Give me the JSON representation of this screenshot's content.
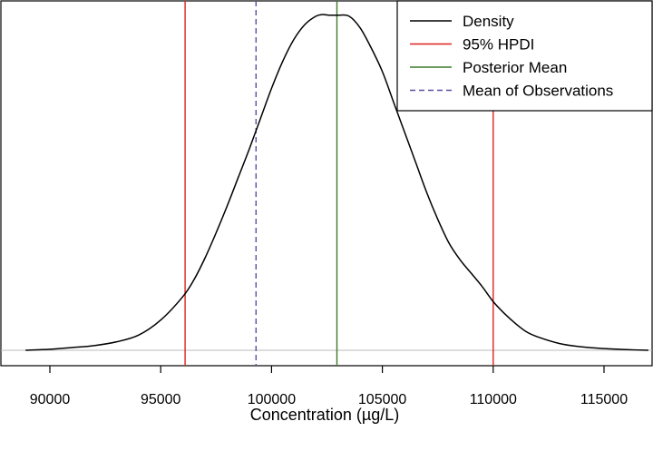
{
  "chart_data": {
    "type": "line",
    "title": "",
    "xlabel": "Concentration (µg/L)",
    "ylabel": "",
    "xlim": [
      88000,
      117500
    ],
    "ylim": [
      0,
      1
    ],
    "x_ticks": [
      90000,
      95000,
      100000,
      105000,
      110000,
      115000
    ],
    "x_tick_labels": [
      "90000",
      "95000",
      "100000",
      "105000",
      "110000",
      "115000"
    ],
    "y_axis_visible": false,
    "grid": false,
    "legend_position": "top-right",
    "legend": [
      {
        "label": "Density",
        "color": "#000000",
        "dash": "solid"
      },
      {
        "label": "95% HPDI",
        "color": "#df2020",
        "dash": "solid"
      },
      {
        "label": "Posterior Mean",
        "color": "#3c7a28",
        "dash": "solid"
      },
      {
        "label": "Mean of Observations",
        "color": "#5a4fa0",
        "dash": "dashed"
      }
    ],
    "density_curve": {
      "name": "Density",
      "color": "#000000",
      "x": [
        88900,
        90000,
        91000,
        92000,
        93000,
        94000,
        95000,
        96000,
        96500,
        97000,
        97500,
        98000,
        98500,
        99000,
        99500,
        100000,
        100500,
        101000,
        101500,
        102000,
        102300,
        102600,
        103000,
        103500,
        104000,
        104500,
        105000,
        105500,
        106000,
        106500,
        107000,
        107500,
        108000,
        108500,
        109000,
        109500,
        110000,
        110500,
        111000,
        111500,
        112000,
        113000,
        114000,
        115000,
        116000,
        117000
      ],
      "y": [
        0.0,
        0.003,
        0.008,
        0.014,
        0.025,
        0.045,
        0.09,
        0.16,
        0.21,
        0.275,
        0.35,
        0.43,
        0.515,
        0.6,
        0.69,
        0.78,
        0.86,
        0.925,
        0.97,
        0.995,
        1.0,
        0.998,
        0.998,
        0.995,
        0.96,
        0.9,
        0.83,
        0.74,
        0.65,
        0.56,
        0.47,
        0.39,
        0.32,
        0.27,
        0.23,
        0.19,
        0.145,
        0.11,
        0.08,
        0.055,
        0.04,
        0.02,
        0.01,
        0.005,
        0.002,
        0.0
      ]
    },
    "vertical_lines": [
      {
        "name": "95% HPDI",
        "x": 96100,
        "color": "#df2020",
        "dash": "solid"
      },
      {
        "name": "95% HPDI",
        "x": 110000,
        "color": "#df2020",
        "dash": "solid"
      },
      {
        "name": "Posterior Mean",
        "x": 102950,
        "color": "#3c7a28",
        "dash": "solid"
      },
      {
        "name": "Mean of Observations",
        "x": 99300,
        "color": "#5a4fa0",
        "dash": "dashed"
      }
    ],
    "baseline_color": "#bbbbbb"
  }
}
